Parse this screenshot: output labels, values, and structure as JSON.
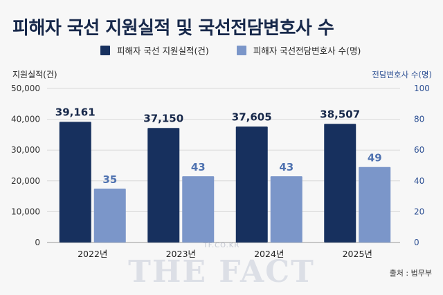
{
  "title": "피해자 국선 지원실적 및 국선전담변호사 수",
  "legend": [
    {
      "label": "피해자 국선 지원실적(건)",
      "color": "#17305e"
    },
    {
      "label": "피해자 국선전담변호사 수(명)",
      "color": "#7b96c9"
    }
  ],
  "source": "출처 : 법무부",
  "watermark": "THE FACT",
  "watermark_small": "TF.CO.KR",
  "chart_data": {
    "type": "bar",
    "categories": [
      "2022년",
      "2023년",
      "2024년",
      "2025년"
    ],
    "series": [
      {
        "name": "피해자 국선 지원실적(건)",
        "values": [
          39161,
          37150,
          37605,
          38507
        ],
        "labels": [
          "39,161",
          "37,150",
          "37,605",
          "38,507"
        ],
        "axis": "left",
        "color": "#17305e"
      },
      {
        "name": "피해자 국선전담변호사 수(명)",
        "values": [
          35,
          43,
          43,
          49
        ],
        "labels": [
          "35",
          "43",
          "43",
          "49"
        ],
        "axis": "right",
        "color": "#7b96c9"
      }
    ],
    "ylabel": "지원실적(건)",
    "y2label": "전담변호사 수(명)",
    "ylim": [
      0,
      50000
    ],
    "y2lim": [
      0,
      100
    ],
    "yticks": [
      "0",
      "10,000",
      "20,000",
      "30,000",
      "40,000",
      "50,000"
    ],
    "y2ticks": [
      "0",
      "20",
      "40",
      "60",
      "80",
      "100"
    ],
    "grid": true
  }
}
